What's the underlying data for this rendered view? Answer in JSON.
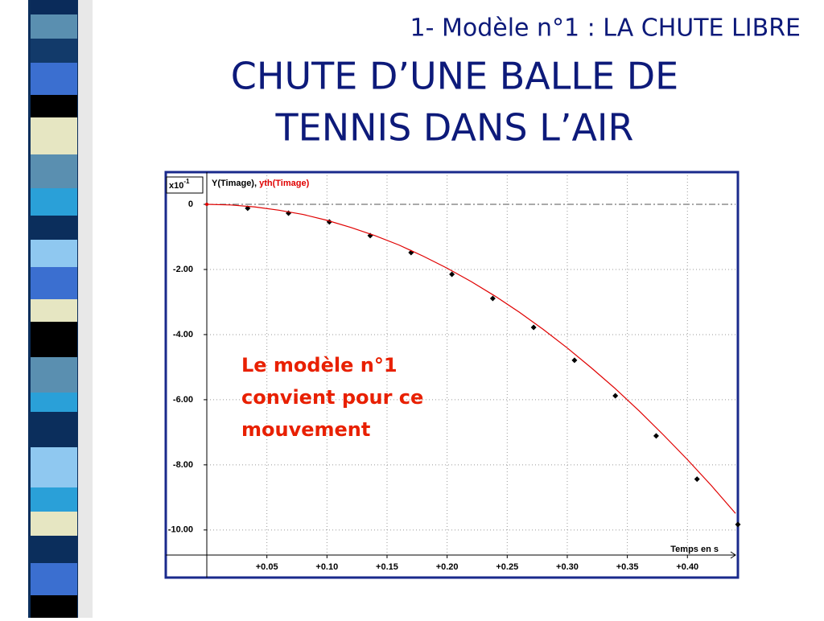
{
  "slide": {
    "subtitle": "1- Modèle n°1 : LA CHUTE LIBRE",
    "title_lines": [
      "CHUTE D’UNE BALLE DE",
      "TENNIS DANS L’AIR"
    ],
    "annotation_lines": [
      "Le modèle n°1",
      "convient pour ce",
      "mouvement"
    ]
  },
  "chart_data": {
    "type": "scatter",
    "y_unit": {
      "base": "x10",
      "exponent": "-1"
    },
    "x_label": "Temps en s",
    "legend_separator": ", ",
    "xlim": [
      0,
      0.44
    ],
    "ylim": [
      -10.77,
      0.89
    ],
    "xticks": [
      {
        "value": 0.05,
        "label": "+0.05"
      },
      {
        "value": 0.1,
        "label": "+0.10"
      },
      {
        "value": 0.15,
        "label": "+0.15"
      },
      {
        "value": 0.2,
        "label": "+0.20"
      },
      {
        "value": 0.25,
        "label": "+0.25"
      },
      {
        "value": 0.3,
        "label": "+0.30"
      },
      {
        "value": 0.35,
        "label": "+0.35"
      },
      {
        "value": 0.4,
        "label": "+0.40"
      }
    ],
    "yticks": [
      0,
      {
        "value": -2,
        "label": "-2.00"
      },
      {
        "value": -4,
        "label": "-4.00"
      },
      {
        "value": -6,
        "label": "-6.00"
      },
      {
        "value": -8,
        "label": "-8.00"
      },
      {
        "value": -10,
        "label": "-10.00"
      }
    ],
    "grid": true,
    "series": [
      {
        "name": "Y(Timage)",
        "color": "#000000",
        "mode": "markers",
        "x": [
          0.034,
          0.068,
          0.102,
          0.136,
          0.17,
          0.204,
          0.238,
          0.272,
          0.306,
          0.34,
          0.374,
          0.408,
          0.442
        ],
        "values": [
          -0.12,
          -0.27,
          -0.54,
          -0.96,
          -1.48,
          -2.15,
          -2.89,
          -3.78,
          -4.79,
          -5.88,
          -7.11,
          -8.44,
          -9.83
        ]
      },
      {
        "name": "yth(Timage)",
        "color": "#e00000",
        "mode": "line",
        "x": [
          0,
          0.02,
          0.04,
          0.06,
          0.08,
          0.1,
          0.12,
          0.14,
          0.16,
          0.18,
          0.2,
          0.22,
          0.24,
          0.26,
          0.28,
          0.3,
          0.32,
          0.34,
          0.36,
          0.38,
          0.4,
          0.42,
          0.44
        ],
        "values": [
          0,
          -0.02,
          -0.08,
          -0.18,
          -0.31,
          -0.49,
          -0.71,
          -0.96,
          -1.25,
          -1.59,
          -1.96,
          -2.37,
          -2.82,
          -3.31,
          -3.84,
          -4.41,
          -5.02,
          -5.66,
          -6.35,
          -7.08,
          -7.84,
          -8.64,
          -9.49
        ]
      }
    ]
  }
}
